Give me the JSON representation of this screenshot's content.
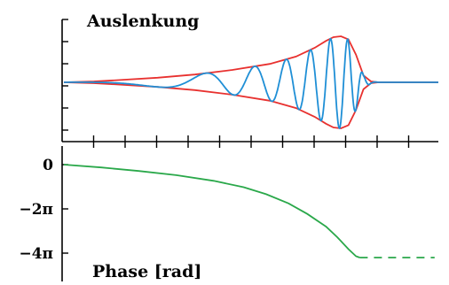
{
  "chart_data": [
    {
      "type": "line",
      "title": "Auslenkung",
      "xlabel": "",
      "ylabel": "",
      "grid": false,
      "envelope_color": "#e8312f",
      "signal_color": "#1f8fd6",
      "x": [
        0,
        0.08,
        0.15,
        0.25,
        0.35,
        0.45,
        0.55,
        0.62,
        0.67,
        0.7,
        0.72,
        0.74,
        0.76,
        0.78,
        0.8,
        0.82,
        0.84,
        0.86,
        1.0
      ],
      "series": [
        {
          "role": "envelope-upper",
          "values": [
            0,
            0.02,
            0.05,
            0.1,
            0.17,
            0.27,
            0.4,
            0.56,
            0.75,
            0.9,
            0.98,
            1.0,
            0.93,
            0.6,
            0.15,
            0.02,
            0,
            0,
            0
          ]
        },
        {
          "role": "envelope-lower",
          "values": [
            0,
            -0.02,
            -0.05,
            -0.1,
            -0.17,
            -0.27,
            -0.4,
            -0.56,
            -0.75,
            -0.9,
            -0.98,
            -1.0,
            -0.93,
            -0.6,
            -0.15,
            -0.02,
            0,
            0,
            0
          ]
        }
      ],
      "signal": {
        "x_start": 0.0,
        "x_end": 0.86,
        "peak_x": 0.74,
        "notes": "chirp with increasing frequency under envelope"
      },
      "xlim": [
        0,
        1
      ],
      "ylim": [
        -1.15,
        1.15
      ]
    },
    {
      "type": "line",
      "title": "Phase [rad]",
      "xlabel": "",
      "ylabel": "",
      "grid": false,
      "line_color": "#2aa84a",
      "yticks": [
        {
          "value": 0,
          "label": "0"
        },
        {
          "value": -6.2832,
          "label": "−2π"
        },
        {
          "value": -12.566,
          "label": "−4π"
        }
      ],
      "series": [
        {
          "style": "solid",
          "x": [
            0,
            0.1,
            0.2,
            0.3,
            0.4,
            0.48,
            0.54,
            0.6,
            0.65,
            0.7,
            0.73,
            0.76,
            0.78,
            0.79
          ],
          "values": [
            0,
            -0.4,
            -0.9,
            -1.5,
            -2.3,
            -3.2,
            -4.2,
            -5.5,
            -7.0,
            -8.8,
            -10.3,
            -12.0,
            -13.0,
            -13.2
          ]
        },
        {
          "style": "dashed",
          "x": [
            0.79,
            0.84,
            0.89,
            0.94,
            0.99
          ],
          "values": [
            -13.2,
            -13.2,
            -13.2,
            -13.2,
            -13.2
          ]
        }
      ],
      "xlim": [
        0,
        1
      ],
      "ylim": [
        -15,
        1
      ]
    }
  ]
}
